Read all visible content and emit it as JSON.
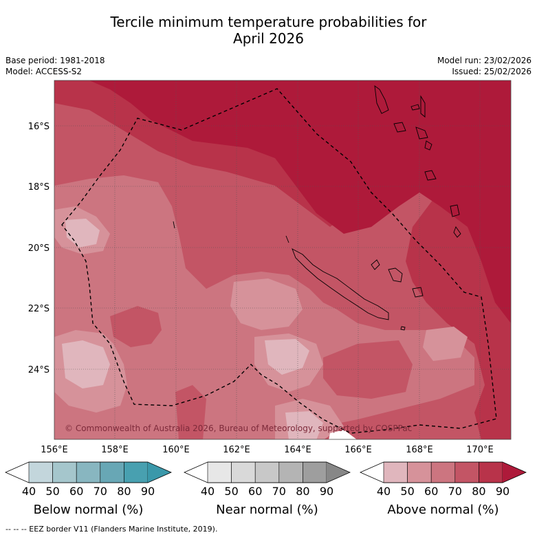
{
  "title": {
    "line1": "Tercile minimum temperature probabilities for",
    "line2": "April 2026"
  },
  "meta": {
    "base_period": "Base period: 1981-2018",
    "model": "Model: ACCESS-S2",
    "model_run": "Model run: 23/02/2026",
    "issued": "Issued: 25/02/2026"
  },
  "map": {
    "lat_ticks": [
      "16°S",
      "18°S",
      "20°S",
      "22°S",
      "24°S"
    ],
    "lon_ticks": [
      "156°E",
      "158°E",
      "160°E",
      "162°E",
      "164°E",
      "166°E",
      "168°E",
      "170°E"
    ],
    "copyright": "© Commonwealth of Australia 2026, Bureau of Meteorology, supported by COSPPac",
    "dominant_category": "Above normal"
  },
  "colorbars": [
    {
      "label": "Below normal (%)",
      "ticks": [
        "40",
        "50",
        "60",
        "70",
        "80",
        "90"
      ],
      "colors": [
        "#ffffff",
        "#c3d6dc",
        "#a5c6cc",
        "#88b6c0",
        "#68a7b5",
        "#48a0b0",
        "#3a98aa"
      ]
    },
    {
      "label": "Near normal (%)",
      "ticks": [
        "40",
        "50",
        "60",
        "70",
        "80",
        "90"
      ],
      "colors": [
        "#ffffff",
        "#e7e7e7",
        "#d9d9d9",
        "#c8c8c8",
        "#b4b4b4",
        "#9e9e9e",
        "#878787"
      ]
    },
    {
      "label": "Above normal (%)",
      "ticks": [
        "40",
        "50",
        "60",
        "70",
        "80",
        "90"
      ],
      "colors": [
        "#ffffff",
        "#e0b6bd",
        "#d6929a",
        "#cc7580",
        "#c35565",
        "#b8334a",
        "#ae1a3a"
      ]
    }
  ],
  "legend": {
    "eez": "--  --  -- EEZ border V11 (Flanders Marine Institute, 2019)."
  }
}
